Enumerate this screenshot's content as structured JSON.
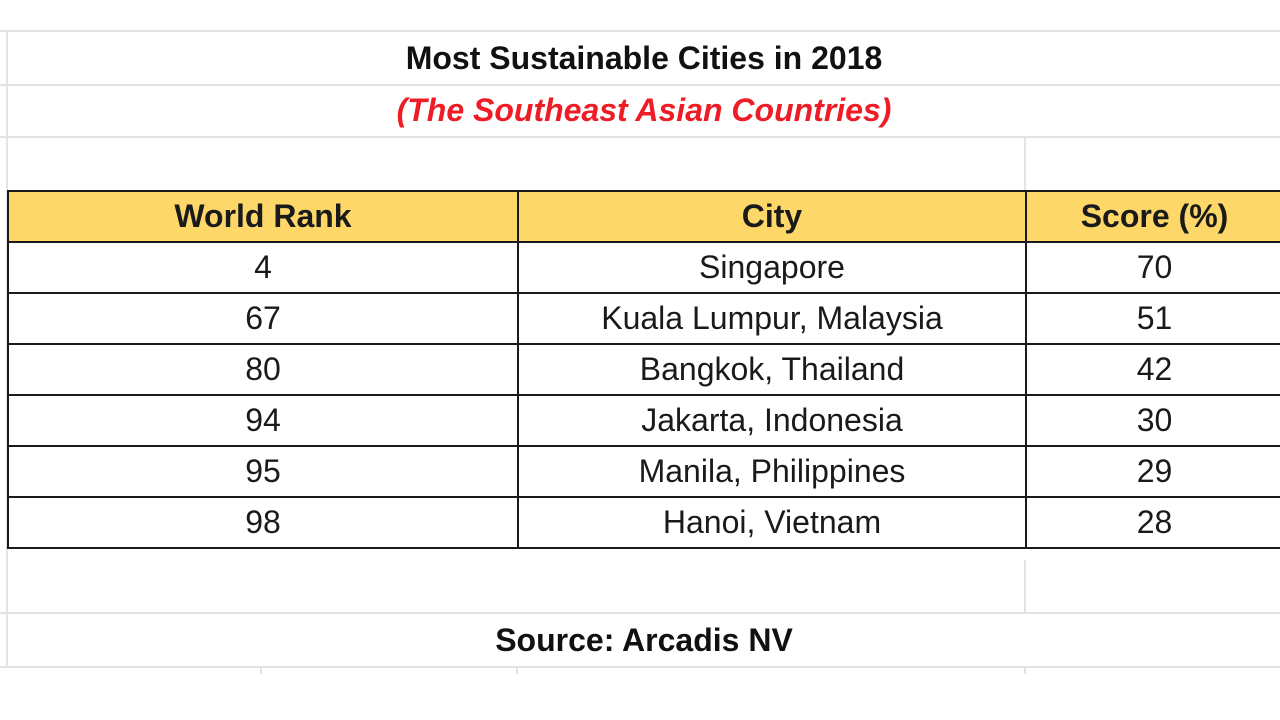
{
  "sheet": {
    "title": "Most Sustainable Cities in 2018",
    "subtitle": "(The Southeast Asian Countries)",
    "source": "Source: Arcadis NV",
    "colors": {
      "header_fill": "#fdd868",
      "subtitle_text": "#ee1c25",
      "gridline": "#e2e3e3",
      "border": "#1a1a1a"
    }
  },
  "table": {
    "headers": [
      "World Rank",
      "City",
      "Score (%)"
    ],
    "rows": [
      [
        "4",
        "Singapore",
        "70"
      ],
      [
        "67",
        "Kuala Lumpur, Malaysia",
        "51"
      ],
      [
        "80",
        "Bangkok, Thailand",
        "42"
      ],
      [
        "94",
        "Jakarta, Indonesia",
        "30"
      ],
      [
        "95",
        "Manila, Philippines",
        "29"
      ],
      [
        "98",
        "Hanoi, Vietnam",
        "28"
      ]
    ]
  }
}
